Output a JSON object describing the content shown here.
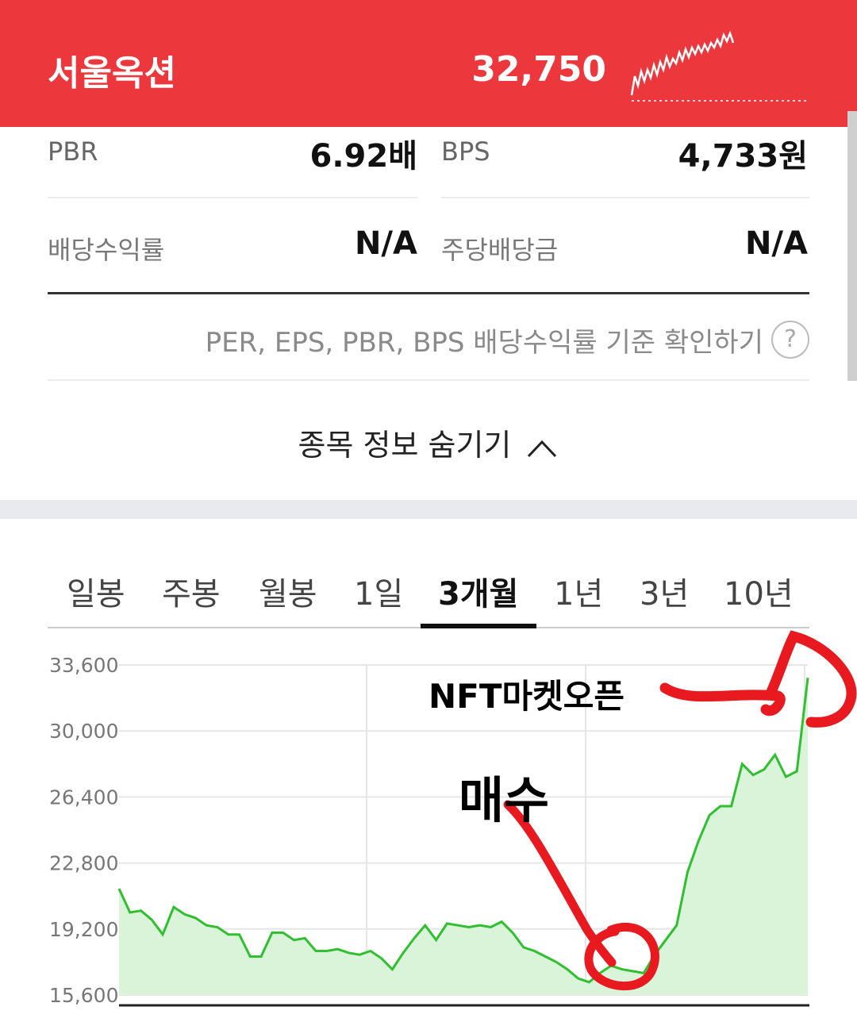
{
  "header": {
    "stock_name": "서울옥션",
    "price": "32,750",
    "accent_color": "#ec373c"
  },
  "metrics": [
    {
      "label": "PBR",
      "value": "6.92배"
    },
    {
      "label": "BPS",
      "value": "4,733원"
    },
    {
      "label": "배당수익률",
      "value": "N/A"
    },
    {
      "label": "주당배당금",
      "value": "N/A"
    }
  ],
  "criteria_link": "PER, EPS, PBR, BPS 배당수익률 기준 확인하기",
  "help_icon": "?",
  "toggle_label": "종목 정보 숨기기",
  "tabs": [
    {
      "label": "일봉"
    },
    {
      "label": "주봉"
    },
    {
      "label": "월봉"
    },
    {
      "label": "1일"
    },
    {
      "label": "3개월",
      "active": true
    },
    {
      "label": "1년"
    },
    {
      "label": "3년"
    },
    {
      "label": "10년"
    }
  ],
  "annotations": {
    "top": "NFT마켓오픈",
    "buy": "매수"
  },
  "chart_data": {
    "type": "area",
    "y_ticks": [
      "33,600",
      "30,000",
      "26,400",
      "22,800",
      "19,200",
      "15,600"
    ],
    "ylim": [
      15600,
      33600
    ],
    "line_color": "#2fbf2f",
    "fill_color": "#d9f4d9",
    "values": [
      21400,
      20100,
      20200,
      19700,
      18900,
      20400,
      20000,
      19800,
      19400,
      19300,
      18900,
      18900,
      17700,
      17700,
      19000,
      19000,
      18600,
      18700,
      18000,
      18000,
      18100,
      17900,
      17800,
      18000,
      17600,
      17000,
      17900,
      18700,
      19400,
      18600,
      19500,
      19400,
      19300,
      19400,
      19300,
      19600,
      19000,
      18200,
      18000,
      17700,
      17400,
      17000,
      16500,
      16300,
      16800,
      17200,
      17000,
      16900,
      16800,
      17800,
      18600,
      19400,
      22300,
      24000,
      25400,
      25900,
      25900,
      28200,
      27600,
      27900,
      28700,
      27500,
      27800,
      32900
    ]
  }
}
